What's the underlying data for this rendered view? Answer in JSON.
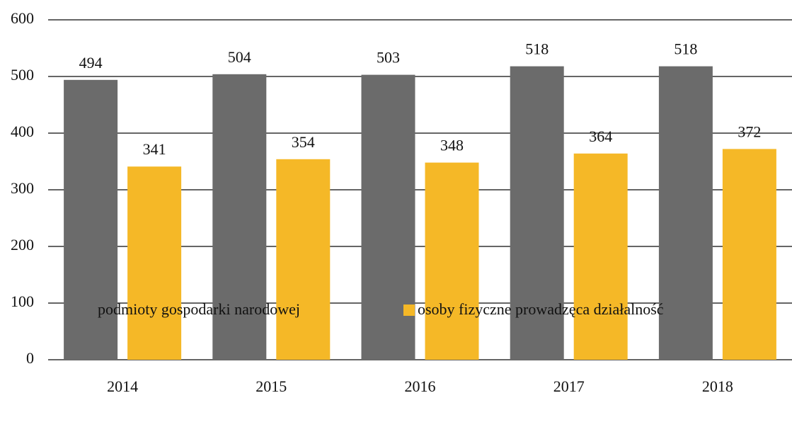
{
  "chart_data": {
    "type": "bar",
    "categories": [
      "2014",
      "2015",
      "2016",
      "2017",
      "2018"
    ],
    "series": [
      {
        "name": "podmioty gospodarki narodowej",
        "color": "#6b6b6b",
        "values": [
          494,
          504,
          503,
          518,
          518
        ]
      },
      {
        "name": "osoby fizyczne prowadzęca działalność",
        "color": "#f5b827",
        "values": [
          341,
          354,
          348,
          364,
          372
        ]
      }
    ],
    "ylim": [
      0,
      600
    ],
    "yticks": [
      0,
      100,
      200,
      300,
      400,
      500,
      600
    ],
    "grid": true,
    "legend": "bottom"
  }
}
